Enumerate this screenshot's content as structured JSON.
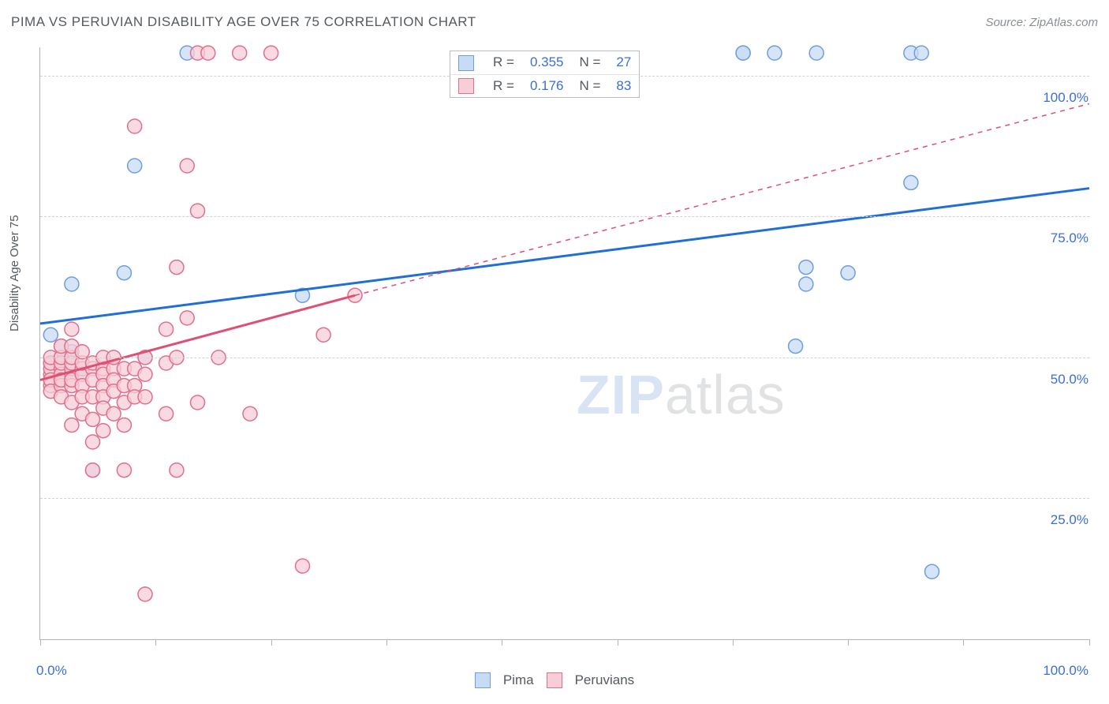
{
  "title": "PIMA VS PERUVIAN DISABILITY AGE OVER 75 CORRELATION CHART",
  "source": "Source: ZipAtlas.com",
  "ylabel": "Disability Age Over 75",
  "watermark_a": "ZIP",
  "watermark_b": "atlas",
  "chart": {
    "type": "scatter",
    "xlim": [
      0,
      100
    ],
    "ylim": [
      0,
      105
    ],
    "x_ticks": [
      0,
      11,
      22,
      33,
      44,
      55,
      66,
      77,
      88,
      100
    ],
    "y_ticks": [
      25,
      50,
      75,
      100
    ],
    "x_axis_labels": {
      "left": "0.0%",
      "right": "100.0%"
    },
    "y_tick_labels": [
      "25.0%",
      "50.0%",
      "75.0%",
      "100.0%"
    ],
    "grid_color": "#cfd3d7",
    "axis_color": "#b0b4b8",
    "label_color": "#3b6fd6",
    "background_color": "#ffffff",
    "marker_radius": 9,
    "marker_stroke_width": 1.5,
    "trend_line_width": 3,
    "series": [
      {
        "name": "Pima",
        "color_fill": "#c8dbf5",
        "color_stroke": "#6f9edb",
        "trend_color": "#1f6fd6",
        "R": "0.355",
        "N": "27",
        "trend": {
          "x1": 0,
          "y1": 56,
          "x2": 100,
          "y2": 80
        },
        "points": [
          [
            1,
            54
          ],
          [
            1,
            49
          ],
          [
            2,
            48
          ],
          [
            2,
            50
          ],
          [
            2,
            52
          ],
          [
            2,
            46
          ],
          [
            3,
            51
          ],
          [
            3,
            63
          ],
          [
            4,
            48
          ],
          [
            5,
            30
          ],
          [
            8,
            65
          ],
          [
            9,
            84
          ],
          [
            10,
            50
          ],
          [
            14,
            104
          ],
          [
            25,
            61
          ],
          [
            67,
            104
          ],
          [
            70,
            104
          ],
          [
            73,
            66
          ],
          [
            73,
            63
          ],
          [
            72,
            52
          ],
          [
            74,
            104
          ],
          [
            77,
            65
          ],
          [
            83,
            104
          ],
          [
            83,
            81
          ],
          [
            84,
            104
          ],
          [
            85,
            12
          ],
          [
            67,
            104
          ]
        ]
      },
      {
        "name": "Peruvians",
        "color_fill": "#f7cdd8",
        "color_stroke": "#e06f8c",
        "trend_color": "#df4f73",
        "R": "0.176",
        "N": "83",
        "trend_solid": {
          "x1": 0,
          "y1": 46,
          "x2": 30,
          "y2": 61
        },
        "trend_dashed": {
          "x1": 30,
          "y1": 61,
          "x2": 100,
          "y2": 95
        },
        "points": [
          [
            1,
            47
          ],
          [
            1,
            48
          ],
          [
            1,
            45
          ],
          [
            1,
            49
          ],
          [
            1,
            46
          ],
          [
            1,
            50
          ],
          [
            1,
            44
          ],
          [
            2,
            48
          ],
          [
            2,
            47
          ],
          [
            2,
            49
          ],
          [
            2,
            45
          ],
          [
            2,
            50
          ],
          [
            2,
            52
          ],
          [
            2,
            46
          ],
          [
            2,
            43
          ],
          [
            3,
            47
          ],
          [
            3,
            48
          ],
          [
            3,
            49
          ],
          [
            3,
            50
          ],
          [
            3,
            45
          ],
          [
            3,
            52
          ],
          [
            3,
            46
          ],
          [
            3,
            55
          ],
          [
            3,
            42
          ],
          [
            3,
            38
          ],
          [
            4,
            48
          ],
          [
            4,
            47
          ],
          [
            4,
            49
          ],
          [
            4,
            51
          ],
          [
            4,
            45
          ],
          [
            4,
            43
          ],
          [
            4,
            40
          ],
          [
            5,
            48
          ],
          [
            5,
            46
          ],
          [
            5,
            49
          ],
          [
            5,
            43
          ],
          [
            5,
            39
          ],
          [
            5,
            35
          ],
          [
            5,
            30
          ],
          [
            6,
            48
          ],
          [
            6,
            47
          ],
          [
            6,
            50
          ],
          [
            6,
            45
          ],
          [
            6,
            43
          ],
          [
            6,
            41
          ],
          [
            6,
            37
          ],
          [
            7,
            48
          ],
          [
            7,
            46
          ],
          [
            7,
            50
          ],
          [
            7,
            44
          ],
          [
            7,
            40
          ],
          [
            8,
            48
          ],
          [
            8,
            45
          ],
          [
            8,
            42
          ],
          [
            8,
            30
          ],
          [
            8,
            38
          ],
          [
            9,
            48
          ],
          [
            9,
            45
          ],
          [
            9,
            43
          ],
          [
            9,
            91
          ],
          [
            10,
            47
          ],
          [
            10,
            50
          ],
          [
            10,
            43
          ],
          [
            10,
            8
          ],
          [
            12,
            49
          ],
          [
            12,
            55
          ],
          [
            12,
            40
          ],
          [
            13,
            50
          ],
          [
            13,
            30
          ],
          [
            13,
            66
          ],
          [
            14,
            57
          ],
          [
            14,
            84
          ],
          [
            15,
            76
          ],
          [
            15,
            42
          ],
          [
            15,
            104
          ],
          [
            16,
            104
          ],
          [
            17,
            50
          ],
          [
            19,
            104
          ],
          [
            20,
            40
          ],
          [
            22,
            104
          ],
          [
            25,
            13
          ],
          [
            27,
            54
          ],
          [
            30,
            61
          ]
        ]
      }
    ]
  },
  "legend_top": {
    "rows": [
      {
        "swatch_fill": "#c8dbf5",
        "swatch_stroke": "#6f9edb",
        "r_label": "R =",
        "r_val": "0.355",
        "n_label": "N =",
        "n_val": "27"
      },
      {
        "swatch_fill": "#f7cdd8",
        "swatch_stroke": "#e06f8c",
        "r_label": "R =",
        "r_val": "0.176",
        "n_label": "N =",
        "n_val": "83"
      }
    ]
  },
  "legend_bottom": {
    "items": [
      {
        "swatch_fill": "#c8dbf5",
        "swatch_stroke": "#6f9edb",
        "label": "Pima"
      },
      {
        "swatch_fill": "#f7cdd8",
        "swatch_stroke": "#e06f8c",
        "label": "Peruvians"
      }
    ]
  }
}
